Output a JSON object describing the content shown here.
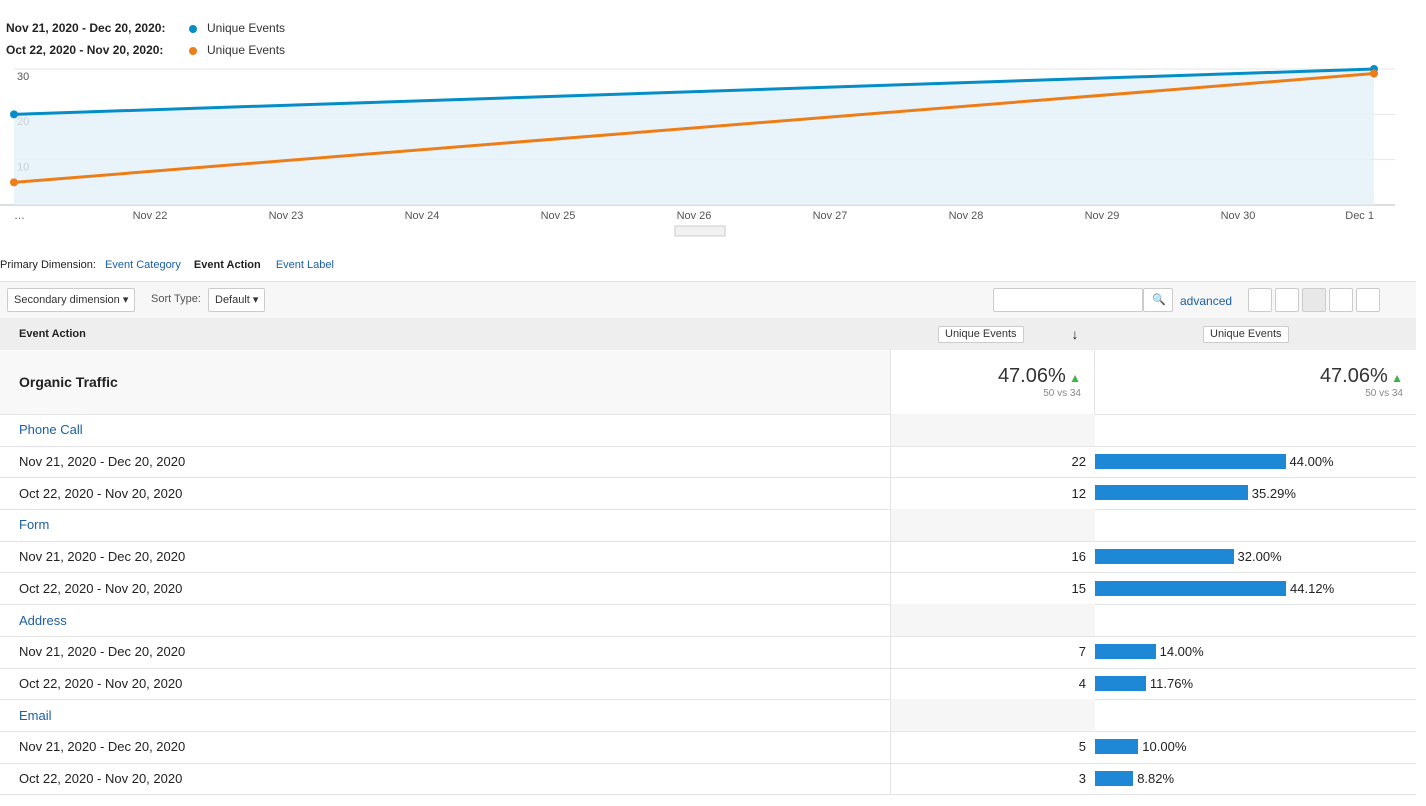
{
  "chart_data": {
    "type": "line",
    "x": [
      "…",
      "Dec 1"
    ],
    "xticks": [
      "…",
      "Nov 22",
      "Nov 23",
      "Nov 24",
      "Nov 25",
      "Nov 26",
      "Nov 27",
      "Nov 28",
      "Nov 29",
      "Nov 30",
      "Dec 1"
    ],
    "series": [
      {
        "period": "Nov 21, 2020 - Dec 20, 2020:",
        "name": "Unique Events",
        "color": "#058dc7",
        "values": [
          20,
          30
        ]
      },
      {
        "period": "Oct 22, 2020 - Nov 20, 2020:",
        "name": "Unique Events",
        "color": "#ed7e17",
        "values": [
          5,
          29
        ]
      }
    ],
    "ylim": [
      0,
      30
    ],
    "yticks": [
      10,
      20,
      30
    ],
    "grid": true
  },
  "dimension": {
    "label": "Primary Dimension:",
    "options": [
      "Event Category",
      "Event Action",
      "Event Label"
    ]
  },
  "toolbar": {
    "secondary": "Secondary dimension",
    "sort_label": "Sort Type:",
    "sort_value": "Default",
    "advanced": "advanced"
  },
  "table": {
    "headers": [
      "Event Action",
      "Unique Events",
      "Unique Events"
    ],
    "summary": {
      "name": "Organic Traffic",
      "change": "47.06%",
      "compare": "50 vs 34"
    },
    "groups": [
      {
        "name": "Phone Call",
        "rows": [
          {
            "period": "Nov 21, 2020 - Dec 20, 2020",
            "value": 22,
            "share": 44.0,
            "share_label": "44.00%"
          },
          {
            "period": "Oct 22, 2020 - Nov 20, 2020",
            "value": 12,
            "share": 35.29,
            "share_label": "35.29%"
          }
        ]
      },
      {
        "name": "Form",
        "rows": [
          {
            "period": "Nov 21, 2020 - Dec 20, 2020",
            "value": 16,
            "share": 32.0,
            "share_label": "32.00%"
          },
          {
            "period": "Oct 22, 2020 - Nov 20, 2020",
            "value": 15,
            "share": 44.12,
            "share_label": "44.12%"
          }
        ]
      },
      {
        "name": "Address",
        "rows": [
          {
            "period": "Nov 21, 2020 - Dec 20, 2020",
            "value": 7,
            "share": 14.0,
            "share_label": "14.00%"
          },
          {
            "period": "Oct 22, 2020 - Nov 20, 2020",
            "value": 4,
            "share": 11.76,
            "share_label": "11.76%"
          }
        ]
      },
      {
        "name": "Email",
        "rows": [
          {
            "period": "Nov 21, 2020 - Dec 20, 2020",
            "value": 5,
            "share": 10.0,
            "share_label": "10.00%"
          },
          {
            "period": "Oct 22, 2020 - Nov 20, 2020",
            "value": 3,
            "share": 8.82,
            "share_label": "8.82%"
          }
        ]
      }
    ]
  }
}
